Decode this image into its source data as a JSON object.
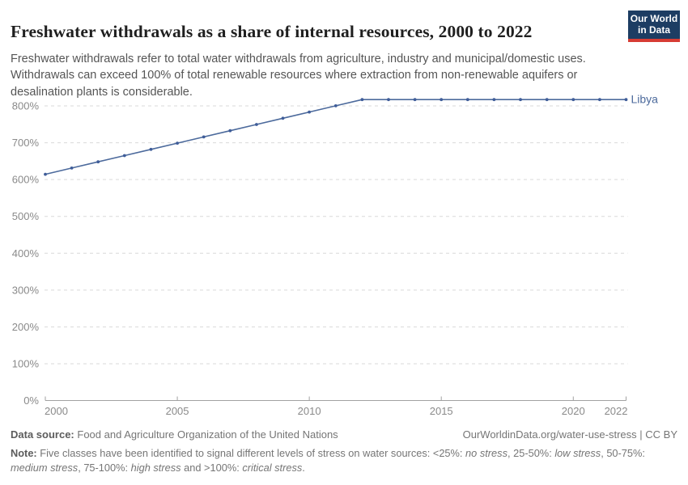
{
  "header": {
    "title": "Freshwater withdrawals as a share of internal resources, 2000 to 2022",
    "subtitle": "Freshwater withdrawals refer to total water withdrawals from agriculture, industry and municipal/domestic uses. Withdrawals can exceed 100% of total renewable resources where extraction from non-renewable aquifers or desalination plants is considerable.",
    "logo": {
      "line1": "Our World",
      "line2": "in Data",
      "bg_color": "#1d3d63",
      "accent_color": "#d73c34"
    }
  },
  "chart_data": {
    "type": "line",
    "title": "Freshwater withdrawals as a share of internal resources, 2000 to 2022",
    "x": [
      2000,
      2001,
      2002,
      2003,
      2004,
      2005,
      2006,
      2007,
      2008,
      2009,
      2010,
      2011,
      2012,
      2013,
      2014,
      2015,
      2016,
      2017,
      2018,
      2019,
      2020,
      2021,
      2022
    ],
    "series": [
      {
        "name": "Libya",
        "color": "#4c6a9c",
        "marker_color": "#3f5d99",
        "values": [
          614.3,
          631.2,
          648.1,
          665.0,
          681.9,
          698.8,
          715.7,
          732.6,
          749.5,
          766.4,
          783.3,
          800.2,
          817.1,
          817.1,
          817.1,
          817.1,
          817.1,
          817.1,
          817.1,
          817.1,
          817.1,
          817.1,
          817.1
        ]
      }
    ],
    "xlabel": "",
    "ylabel": "",
    "ylim": [
      0,
      800
    ],
    "xlim": [
      2000,
      2022
    ],
    "yticks": [
      {
        "value": 0,
        "label": "0%"
      },
      {
        "value": 100,
        "label": "100%"
      },
      {
        "value": 200,
        "label": "200%"
      },
      {
        "value": 300,
        "label": "300%"
      },
      {
        "value": 400,
        "label": "400%"
      },
      {
        "value": 500,
        "label": "500%"
      },
      {
        "value": 600,
        "label": "600%"
      },
      {
        "value": 700,
        "label": "700%"
      },
      {
        "value": 800,
        "label": "800%"
      }
    ],
    "xticks": [
      {
        "value": 2000,
        "label": "2000"
      },
      {
        "value": 2005,
        "label": "2005"
      },
      {
        "value": 2010,
        "label": "2010"
      },
      {
        "value": 2015,
        "label": "2015"
      },
      {
        "value": 2020,
        "label": "2020"
      },
      {
        "value": 2022,
        "label": "2022"
      }
    ],
    "grid": "horizontal-dashed",
    "legend": "entity-label-at-line-end",
    "grid_color": "#d9d9d9",
    "axis_color": "#a1a1a1",
    "tick_label_color": "#8a8a8a"
  },
  "footer": {
    "source_label": "Data source:",
    "source_text": "Food and Agriculture Organization of the United Nations",
    "credit_text": "OurWorldinData.org/water-use-stress | CC BY",
    "note_label": "Note:",
    "note_segments": [
      {
        "text": " Five classes have been identified to signal different levels of stress on water sources: <25%: ",
        "italic": false
      },
      {
        "text": "no stress",
        "italic": true
      },
      {
        "text": ", 25-50%: ",
        "italic": false
      },
      {
        "text": "low stress",
        "italic": true
      },
      {
        "text": ", 50-75%: ",
        "italic": false
      },
      {
        "text": "medium stress",
        "italic": true
      },
      {
        "text": ", 75-100%: ",
        "italic": false
      },
      {
        "text": "high stress",
        "italic": true
      },
      {
        "text": " and >100%: ",
        "italic": false
      },
      {
        "text": "critical stress",
        "italic": true
      },
      {
        "text": ".",
        "italic": false
      }
    ]
  }
}
